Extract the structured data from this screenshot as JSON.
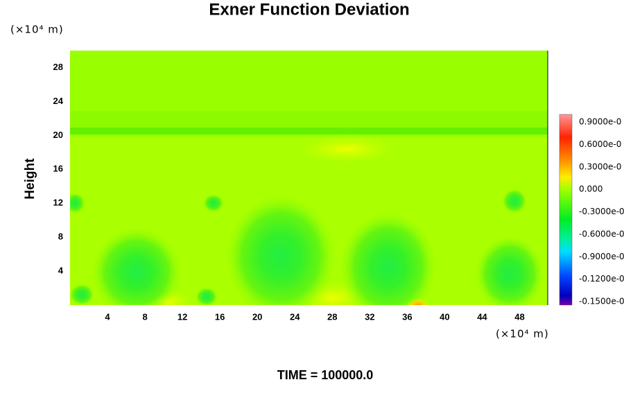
{
  "chart_data": {
    "type": "contour",
    "title": "Exner Function Deviation",
    "y_label": "Height",
    "x_unit": "(×10⁴ m)",
    "y_unit": "(×10⁴ m)",
    "xlim": [
      0,
      51
    ],
    "xticks": [
      4,
      8,
      12,
      16,
      20,
      24,
      28,
      32,
      36,
      40,
      44,
      48
    ],
    "ylim": [
      0,
      30
    ],
    "yticks": [
      4,
      8,
      12,
      16,
      20,
      24,
      28
    ],
    "colorbar_labels": [
      "0.9000e-0",
      "0.6000e-0",
      "0.3000e-0",
      "0.000",
      "-0.3000e-0",
      "-0.6000e-0",
      "-0.9000e-0",
      "-0.1200e-0",
      "-0.1500e-0"
    ],
    "footer": "TIME = 100000.0"
  }
}
